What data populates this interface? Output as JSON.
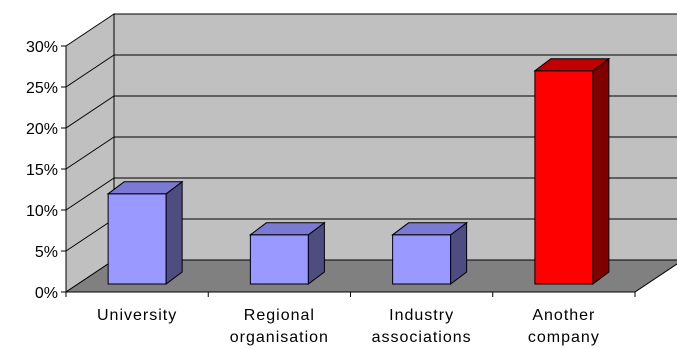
{
  "chart_data": {
    "type": "bar",
    "categories": [
      [
        "University"
      ],
      [
        "Regional",
        "organisation"
      ],
      [
        "Industry",
        "associations"
      ],
      [
        "Another",
        "company"
      ]
    ],
    "values": [
      11,
      6,
      6,
      26
    ],
    "ylim": [
      0,
      30
    ],
    "y_ticks": [
      "0%",
      "5%",
      "10%",
      "15%",
      "20%",
      "25%",
      "30%"
    ],
    "y_tick_values": [
      0,
      5,
      10,
      15,
      20,
      25,
      30
    ],
    "grid": true,
    "legend": "none",
    "style": "3d",
    "colors": {
      "wall": "#c0c0c0",
      "floor": "#808080",
      "bar_front": [
        "#9999ff",
        "#9999ff",
        "#9999ff",
        "#ff0000"
      ],
      "bar_top": [
        "#7a7ad4",
        "#7a7ad4",
        "#7a7ad4",
        "#c00000"
      ],
      "bar_side": [
        "#4d4d80",
        "#4d4d80",
        "#4d4d80",
        "#800000"
      ]
    }
  }
}
